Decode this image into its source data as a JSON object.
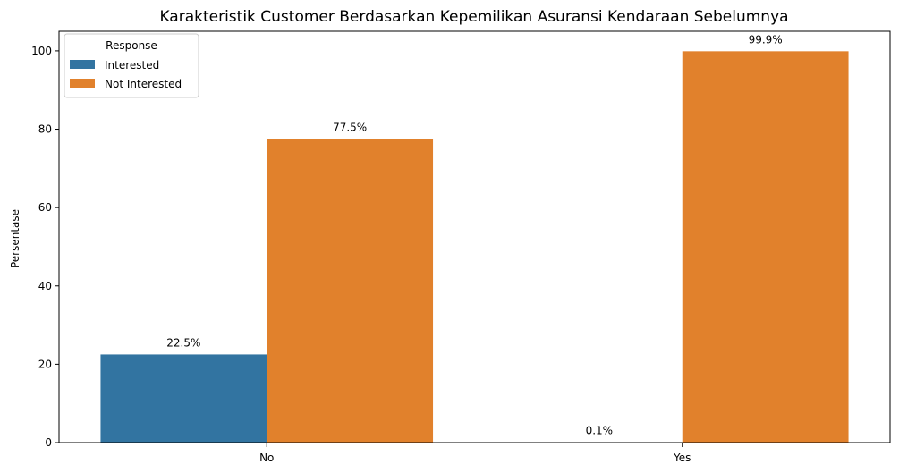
{
  "chart_data": {
    "type": "bar",
    "title": "Karakteristik Customer Berdasarkan Kepemilikan Asuransi Kendaraan Sebelumnya",
    "xlabel": "",
    "ylabel": "Persentase",
    "categories": [
      "No",
      "Yes"
    ],
    "ylim": [
      0,
      105
    ],
    "yticks": [
      0,
      20,
      40,
      60,
      80,
      100
    ],
    "ytick_labels": [
      "0",
      "20",
      "40",
      "60",
      "80",
      "100"
    ],
    "series": [
      {
        "name": "Interested",
        "color": "#3274a1",
        "values": [
          22.5,
          0.1
        ],
        "labels": [
          "22.5%",
          "0.1%"
        ]
      },
      {
        "name": "Not Interested",
        "color": "#e1812c",
        "values": [
          77.5,
          99.9
        ],
        "labels": [
          "77.5%",
          "99.9%"
        ]
      }
    ],
    "legend": {
      "title": "Response",
      "position": "top-left"
    },
    "grid": false
  }
}
